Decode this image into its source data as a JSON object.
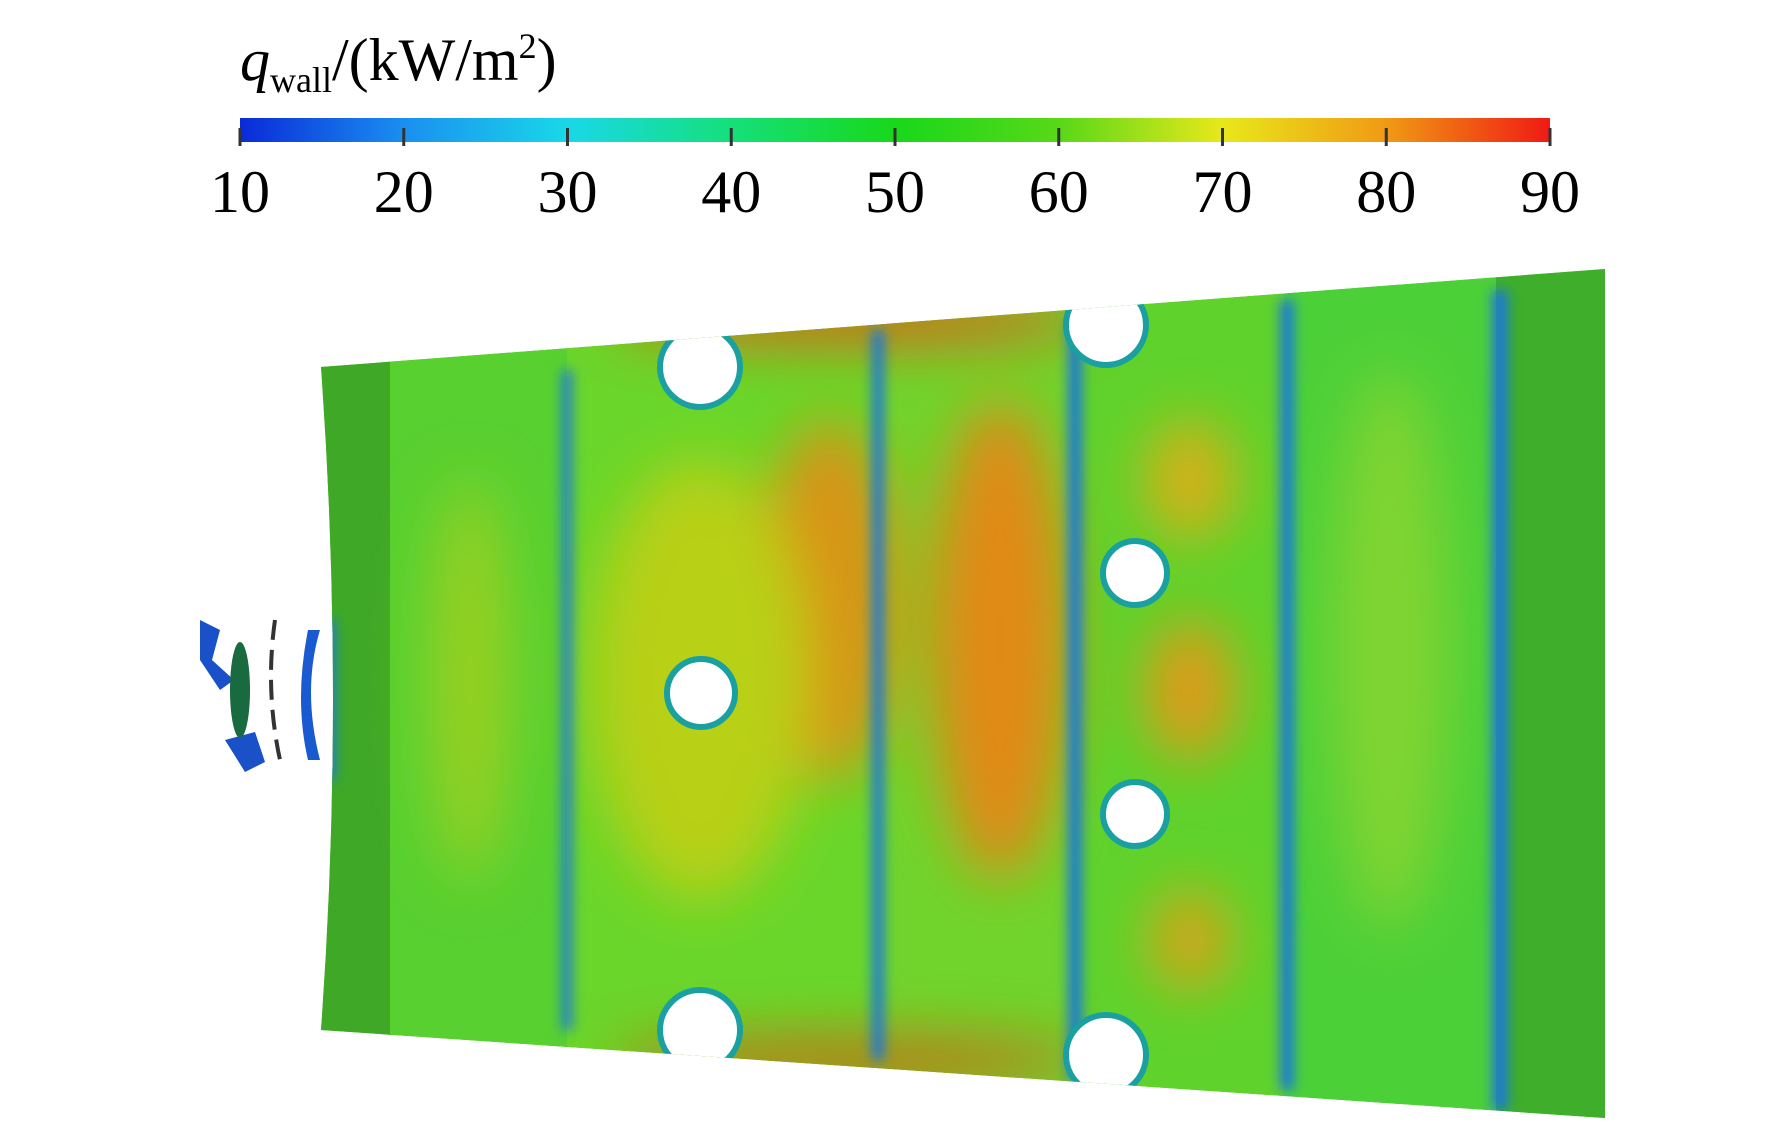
{
  "chart_data": {
    "type": "contour",
    "title": {
      "symbol": "q",
      "subscript": "wall",
      "unit": "/(kW/m",
      "superscript": "2",
      "close": ")"
    },
    "colorbar": {
      "lim": [
        10,
        90
      ],
      "ticks": [
        10,
        20,
        30,
        40,
        50,
        60,
        70,
        80,
        90
      ],
      "colormap": [
        "#0a2ad8",
        "#1a8ff0",
        "#19d8e8",
        "#14e07a",
        "#18d81a",
        "#58d818",
        "#e8e81a",
        "#f09a14",
        "#f01a14"
      ]
    }
  }
}
